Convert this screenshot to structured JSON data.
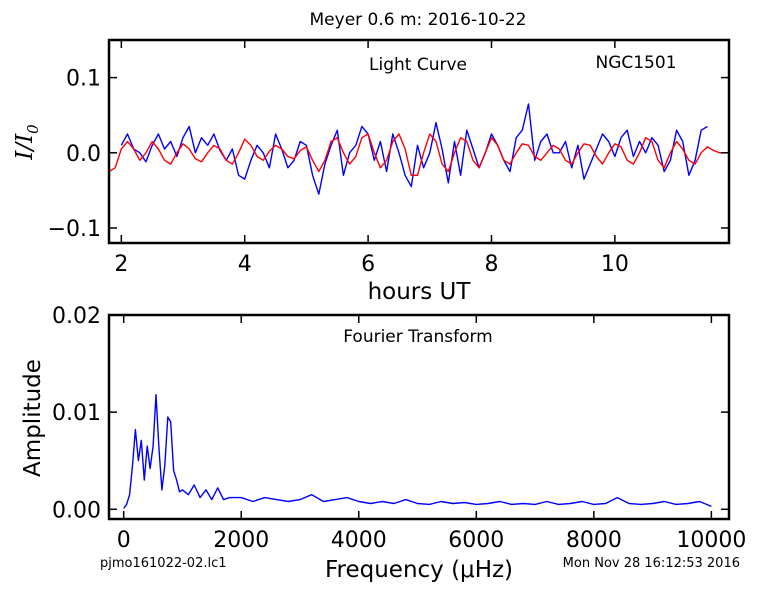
{
  "figure": {
    "title": "Meyer 0.6 m:  2016-10-22",
    "footer_left": "pjmo161022-02.lc1",
    "footer_right": "Mon Nov 28 16:12:53 2016"
  },
  "colors": {
    "data": "#0000ff",
    "model": "#ff0000",
    "axes": "#000000"
  },
  "chart_data": [
    {
      "type": "line",
      "title": "Light Curve",
      "annotation": "NGC1501",
      "xlabel": "hours UT",
      "ylabel_main": "I/I",
      "ylabel_sub": "0",
      "xlim": [
        1.8,
        11.85
      ],
      "ylim": [
        -0.12,
        0.15
      ],
      "xticks": [
        2,
        4,
        6,
        8,
        10
      ],
      "xtick_labels": [
        "2",
        "4",
        "6",
        "8",
        "10"
      ],
      "yticks": [
        -0.1,
        0.0,
        0.1
      ],
      "ytick_labels": [
        "−0.1",
        "0.0",
        "0.1"
      ],
      "grid": false,
      "series": [
        {
          "role": "data",
          "color": "#0000ff",
          "x": [
            2.0,
            2.1,
            2.2,
            2.3,
            2.4,
            2.5,
            2.6,
            2.7,
            2.8,
            2.9,
            3.0,
            3.1,
            3.2,
            3.3,
            3.4,
            3.5,
            3.6,
            3.7,
            3.8,
            3.9,
            4.0,
            4.1,
            4.2,
            4.3,
            4.4,
            4.5,
            4.6,
            4.7,
            4.8,
            4.9,
            5.0,
            5.1,
            5.2,
            5.3,
            5.4,
            5.5,
            5.6,
            5.7,
            5.8,
            5.9,
            6.0,
            6.1,
            6.2,
            6.3,
            6.4,
            6.5,
            6.6,
            6.7,
            6.8,
            6.9,
            7.0,
            7.1,
            7.2,
            7.3,
            7.4,
            7.5,
            7.6,
            7.7,
            7.8,
            7.9,
            8.0,
            8.1,
            8.2,
            8.3,
            8.4,
            8.5,
            8.6,
            8.7,
            8.8,
            8.9,
            9.0,
            9.1,
            9.2,
            9.3,
            9.4,
            9.5,
            9.6,
            9.7,
            9.8,
            9.9,
            10.0,
            10.1,
            10.2,
            10.3,
            10.4,
            10.5,
            10.6,
            10.7,
            10.8,
            10.9,
            11.0,
            11.1,
            11.2,
            11.3,
            11.4,
            11.5
          ],
          "y": [
            0.01,
            0.025,
            0.005,
            0.0,
            -0.012,
            0.01,
            0.025,
            0.005,
            0.015,
            -0.005,
            0.02,
            0.035,
            0.0,
            0.02,
            0.01,
            0.025,
            0.003,
            -0.01,
            0.005,
            -0.03,
            -0.035,
            -0.01,
            0.01,
            0.0,
            -0.02,
            0.025,
            0.005,
            -0.02,
            -0.01,
            0.015,
            0.01,
            -0.03,
            -0.055,
            -0.015,
            0.01,
            0.03,
            -0.03,
            0.0,
            0.01,
            0.035,
            0.025,
            -0.01,
            0.015,
            -0.025,
            0.025,
            0.0,
            -0.03,
            -0.045,
            0.01,
            -0.02,
            0.0,
            0.04,
            0.005,
            -0.04,
            0.015,
            -0.03,
            0.03,
            0.005,
            -0.02,
            0.0,
            0.025,
            0.01,
            -0.01,
            -0.025,
            0.02,
            0.03,
            0.065,
            -0.01,
            0.015,
            0.025,
            0.0,
            0.0,
            0.015,
            -0.02,
            0.01,
            -0.035,
            -0.015,
            0.005,
            0.025,
            0.015,
            -0.005,
            0.02,
            0.03,
            -0.005,
            0.015,
            0.0,
            0.02,
            0.01,
            -0.025,
            -0.01,
            0.03,
            0.015,
            -0.03,
            -0.01,
            0.03,
            0.035
          ]
        },
        {
          "role": "model",
          "color": "#ff0000",
          "x": [
            1.8,
            1.9,
            2.0,
            2.1,
            2.2,
            2.3,
            2.4,
            2.5,
            2.6,
            2.7,
            2.8,
            2.9,
            3.0,
            3.1,
            3.2,
            3.3,
            3.4,
            3.5,
            3.6,
            3.7,
            3.8,
            3.9,
            4.0,
            4.1,
            4.2,
            4.3,
            4.4,
            4.5,
            4.6,
            4.7,
            4.8,
            4.9,
            5.0,
            5.1,
            5.2,
            5.3,
            5.4,
            5.5,
            5.6,
            5.7,
            5.8,
            5.9,
            6.0,
            6.1,
            6.2,
            6.3,
            6.4,
            6.5,
            6.6,
            6.7,
            6.8,
            6.9,
            7.0,
            7.1,
            7.2,
            7.3,
            7.4,
            7.5,
            7.6,
            7.7,
            7.8,
            7.9,
            8.0,
            8.1,
            8.2,
            8.3,
            8.4,
            8.5,
            8.6,
            8.7,
            8.8,
            8.9,
            9.0,
            9.1,
            9.2,
            9.3,
            9.4,
            9.5,
            9.6,
            9.7,
            9.8,
            9.9,
            10.0,
            10.1,
            10.2,
            10.3,
            10.4,
            10.5,
            10.6,
            10.7,
            10.8,
            10.9,
            11.0,
            11.1,
            11.2,
            11.3,
            11.4,
            11.5,
            11.6,
            11.7,
            11.8
          ],
          "y": [
            -0.025,
            -0.02,
            0.005,
            0.015,
            0.005,
            -0.01,
            0.0,
            0.015,
            0.005,
            -0.01,
            -0.015,
            0.0,
            0.012,
            0.005,
            -0.008,
            -0.012,
            0.0,
            0.01,
            0.005,
            -0.01,
            -0.015,
            0.0,
            0.018,
            0.01,
            -0.005,
            -0.01,
            0.002,
            0.01,
            0.005,
            -0.005,
            -0.008,
            0.003,
            0.008,
            -0.01,
            -0.025,
            -0.01,
            0.015,
            0.02,
            0.0,
            -0.015,
            -0.005,
            0.02,
            0.025,
            0.0,
            -0.02,
            -0.01,
            0.015,
            0.025,
            0.005,
            -0.03,
            -0.03,
            0.0,
            0.025,
            0.015,
            -0.015,
            -0.025,
            0.0,
            0.02,
            0.015,
            -0.01,
            -0.02,
            0.0,
            0.02,
            0.01,
            -0.01,
            -0.015,
            0.0,
            0.012,
            0.01,
            -0.005,
            -0.01,
            0.0,
            0.01,
            0.005,
            -0.01,
            -0.015,
            0.0,
            0.012,
            0.01,
            -0.005,
            -0.015,
            0.0,
            0.012,
            0.008,
            -0.01,
            -0.015,
            0.0,
            0.02,
            0.015,
            -0.01,
            -0.02,
            0.0,
            0.015,
            0.005,
            -0.01,
            -0.015,
            0.0,
            0.008,
            0.003,
            0.0,
            0.0
          ]
        }
      ]
    },
    {
      "type": "line",
      "title": "Fourier Transform",
      "xlabel": "Frequency (μHz)",
      "ylabel": "Amplitude",
      "xlim": [
        -250,
        10300
      ],
      "ylim": [
        -0.001,
        0.02
      ],
      "xticks": [
        0,
        2000,
        4000,
        6000,
        8000,
        10000
      ],
      "xtick_labels": [
        "0",
        "2000",
        "4000",
        "6000",
        "8000",
        "10000"
      ],
      "yticks": [
        0.0,
        0.01,
        0.02
      ],
      "ytick_labels": [
        "0.00",
        "0.01",
        "0.02"
      ],
      "grid": false,
      "series": [
        {
          "role": "data",
          "color": "#0000ff",
          "x": [
            0,
            50,
            100,
            150,
            200,
            250,
            300,
            350,
            400,
            450,
            500,
            550,
            600,
            650,
            700,
            750,
            800,
            850,
            900,
            950,
            1000,
            1100,
            1200,
            1300,
            1400,
            1500,
            1600,
            1700,
            1800,
            2000,
            2200,
            2400,
            2600,
            2800,
            3000,
            3200,
            3400,
            3600,
            3800,
            4000,
            4200,
            4400,
            4600,
            4800,
            5000,
            5200,
            5400,
            5600,
            5800,
            6000,
            6200,
            6400,
            6600,
            6800,
            7000,
            7200,
            7400,
            7600,
            7800,
            8000,
            8200,
            8400,
            8600,
            8800,
            9000,
            9200,
            9400,
            9600,
            9800,
            10000
          ],
          "y": [
            0.0001,
            0.0005,
            0.0015,
            0.0045,
            0.0082,
            0.005,
            0.0071,
            0.003,
            0.0065,
            0.0042,
            0.0065,
            0.0118,
            0.0062,
            0.002,
            0.0045,
            0.0095,
            0.009,
            0.004,
            0.003,
            0.0018,
            0.002,
            0.0015,
            0.0025,
            0.0012,
            0.002,
            0.001,
            0.0022,
            0.001,
            0.0012,
            0.0012,
            0.0008,
            0.0012,
            0.001,
            0.0008,
            0.001,
            0.0015,
            0.0008,
            0.001,
            0.0012,
            0.0008,
            0.0006,
            0.0008,
            0.0006,
            0.001,
            0.0006,
            0.0005,
            0.0008,
            0.0006,
            0.0007,
            0.0005,
            0.0006,
            0.0008,
            0.0005,
            0.0006,
            0.0005,
            0.0008,
            0.0005,
            0.0006,
            0.0008,
            0.0005,
            0.0006,
            0.0012,
            0.0006,
            0.0005,
            0.0006,
            0.0008,
            0.0005,
            0.0006,
            0.0008,
            0.0003
          ]
        }
      ]
    }
  ]
}
